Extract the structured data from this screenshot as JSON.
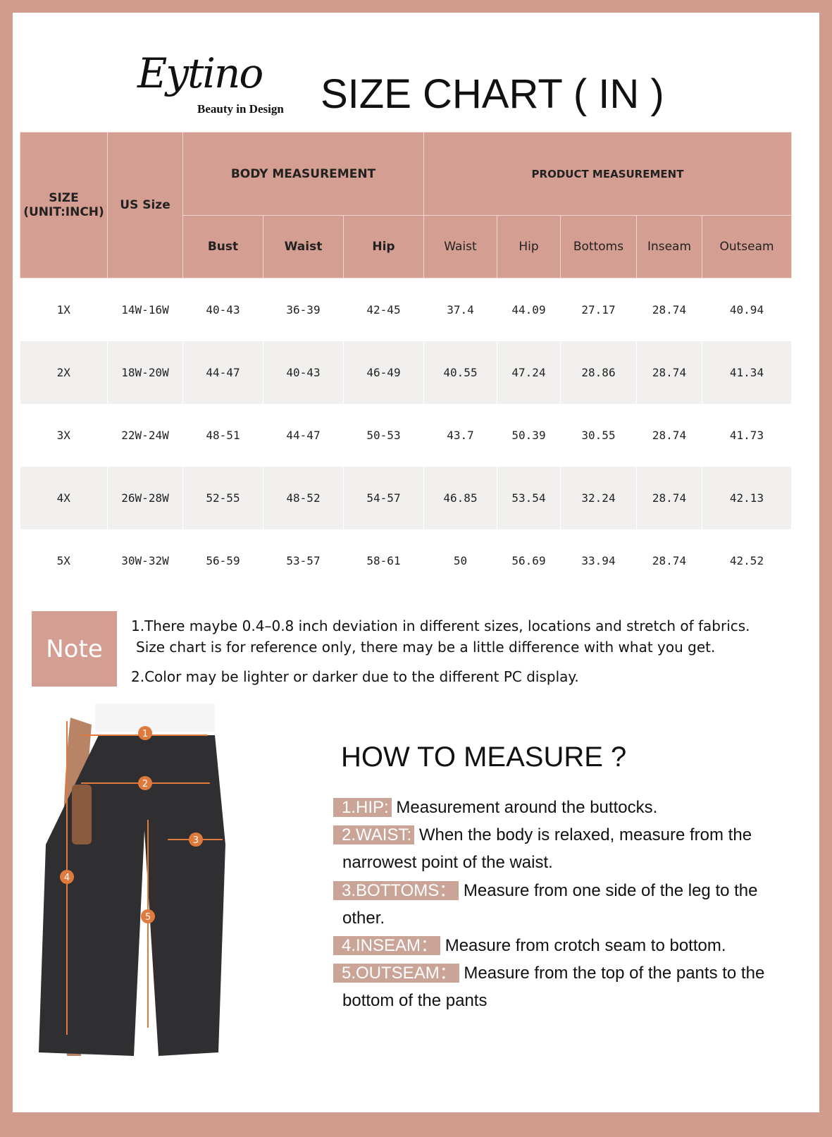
{
  "brand": {
    "name": "Eytino",
    "tagline": "Beauty in Design"
  },
  "title": "SIZE CHART ( IN )",
  "table": {
    "size_header": [
      "SIZE",
      "(UNIT:INCH)"
    ],
    "us_size_header": "US Size",
    "body_group": "BODY MEASUREMENT",
    "product_group": "PRODUCT MEASUREMENT",
    "body_cols": [
      "Bust",
      "Waist",
      "Hip"
    ],
    "product_cols": [
      "Waist",
      "Hip",
      "Bottoms",
      "Inseam",
      "Outseam"
    ],
    "rows": [
      [
        "1X",
        "14W-16W",
        "40-43",
        "36-39",
        "42-45",
        "37.4",
        "44.09",
        "27.17",
        "28.74",
        "40.94"
      ],
      [
        "2X",
        "18W-20W",
        "44-47",
        "40-43",
        "46-49",
        "40.55",
        "47.24",
        "28.86",
        "28.74",
        "41.34"
      ],
      [
        "3X",
        "22W-24W",
        "48-51",
        "44-47",
        "50-53",
        "43.7",
        "50.39",
        "30.55",
        "28.74",
        "41.73"
      ],
      [
        "4X",
        "26W-28W",
        "52-55",
        "48-52",
        "54-57",
        "46.85",
        "53.54",
        "32.24",
        "28.74",
        "42.13"
      ],
      [
        "5X",
        "30W-32W",
        "56-59",
        "53-57",
        "58-61",
        "50",
        "56.69",
        "33.94",
        "28.74",
        "42.52"
      ]
    ]
  },
  "note": {
    "label": "Note",
    "lines": [
      "1.There maybe 0.4–0.8 inch deviation in different sizes, locations and stretch of fabrics.",
      "Size chart is for reference only, there may be a little difference with what you get.",
      "2.Color may be lighter or darker due to the different PC display."
    ]
  },
  "how_to": {
    "title": "HOW TO MEASURE ?",
    "items": [
      {
        "label": "1.HIP:",
        "text": "Measurement around the buttocks.",
        "cont": ""
      },
      {
        "label": "2.WAIST:",
        "text": "When the body is relaxed, measure from the",
        "cont": "narrowest point of the waist."
      },
      {
        "label": "3.BOTTOMS：",
        "text": "Measure from one side of the leg to the",
        "cont": "other."
      },
      {
        "label": "4.INSEAM：",
        "text": "Measure from crotch seam to bottom.",
        "cont": ""
      },
      {
        "label": "5.OUTSEAM：",
        "text": "Measure from the top of the pants to the",
        "cont": "bottom of the pants"
      }
    ]
  },
  "diagram_markers": [
    "1",
    "2",
    "3",
    "4",
    "5"
  ],
  "colors": {
    "frame": "#d19b8d",
    "header": "#d49f92",
    "label": "#c9a497",
    "stripe": "#f2f0ee",
    "marker": "#e07a3c"
  }
}
